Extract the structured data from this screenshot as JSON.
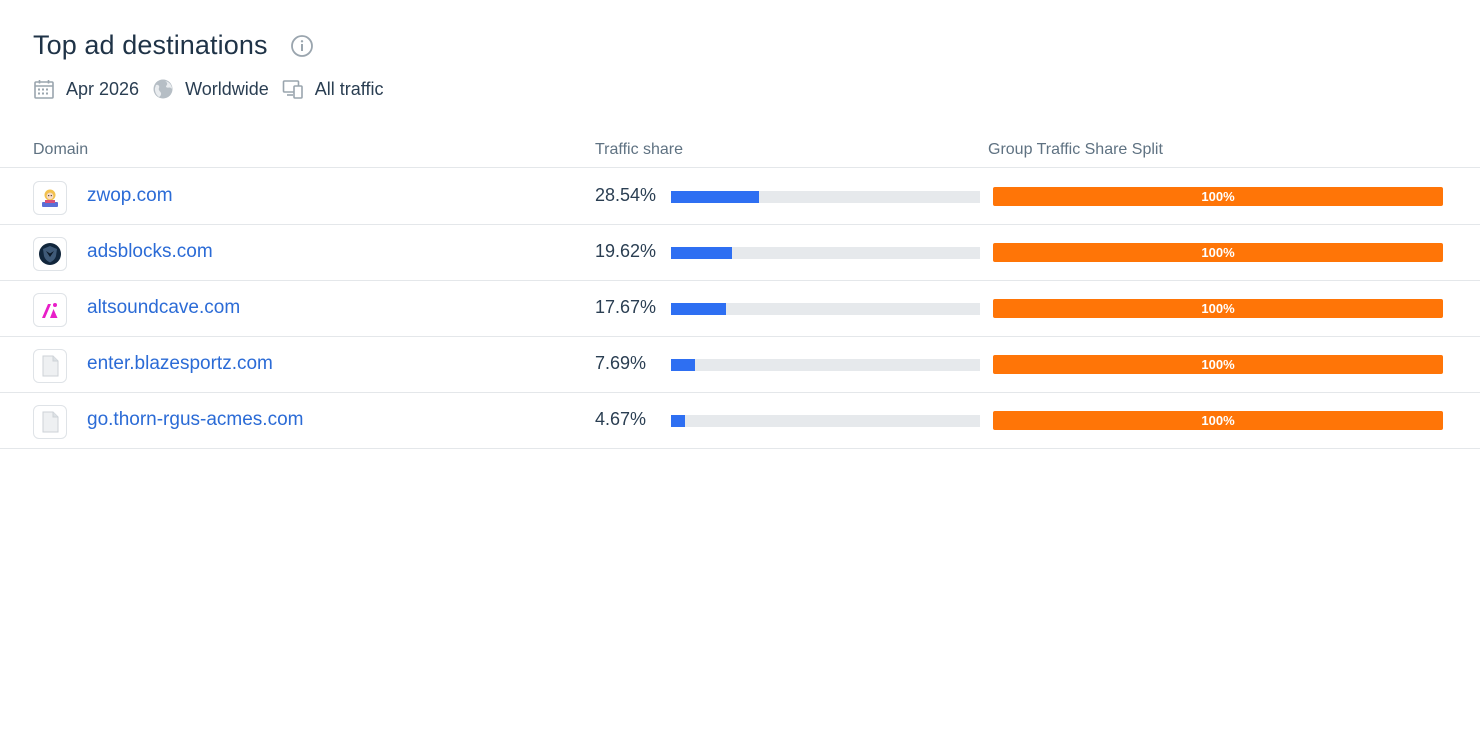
{
  "header": {
    "title": "Top ad destinations",
    "filters": [
      {
        "icon": "calendar-icon",
        "label": "Apr 2026"
      },
      {
        "icon": "globe-icon",
        "label": "Worldwide"
      },
      {
        "icon": "devices-icon",
        "label": "All traffic"
      }
    ]
  },
  "table": {
    "columns": [
      "Domain",
      "Traffic share",
      "Group Traffic Share Split"
    ],
    "rows": [
      {
        "domain": "zwop.com",
        "share": "28.54%",
        "share_value": 28.54,
        "split": "100%",
        "favicon": "zwop-logo-icon"
      },
      {
        "domain": "adsblocks.com",
        "share": "19.62%",
        "share_value": 19.62,
        "split": "100%",
        "favicon": "shield-logo-icon"
      },
      {
        "domain": "altsoundcave.com",
        "share": "17.67%",
        "share_value": 17.67,
        "split": "100%",
        "favicon": "altsoundcave-logo-icon"
      },
      {
        "domain": "enter.blazesportz.com",
        "share": "7.69%",
        "share_value": 7.69,
        "split": "100%",
        "favicon": "blank-page-icon"
      },
      {
        "domain": "go.thorn-rgus-acmes.com",
        "share": "4.67%",
        "share_value": 4.67,
        "split": "100%",
        "favicon": "blank-page-icon"
      }
    ]
  },
  "colors": {
    "share_bar": "#2e6ff2",
    "split_bar": "#ff7507",
    "link": "#2b6bd6"
  }
}
